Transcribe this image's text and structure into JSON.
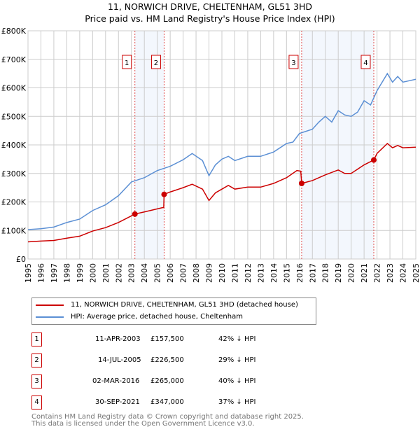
{
  "chart_data": {
    "type": "line",
    "title": "11, NORWICH DRIVE, CHELTENHAM, GL51 3HD",
    "subtitle": "Price paid vs. HM Land Registry's House Price Index (HPI)",
    "xlim": [
      1995,
      2025
    ],
    "ylim": [
      0,
      800000
    ],
    "y_ticks": [
      {
        "v": 0,
        "label": "£0"
      },
      {
        "v": 100000,
        "label": "£100K"
      },
      {
        "v": 200000,
        "label": "£200K"
      },
      {
        "v": 300000,
        "label": "£300K"
      },
      {
        "v": 400000,
        "label": "£400K"
      },
      {
        "v": 500000,
        "label": "£500K"
      },
      {
        "v": 600000,
        "label": "£600K"
      },
      {
        "v": 700000,
        "label": "£700K"
      },
      {
        "v": 800000,
        "label": "£800K"
      }
    ],
    "x_ticks": [
      "1995",
      "1996",
      "1997",
      "1998",
      "1999",
      "2000",
      "2001",
      "2002",
      "2003",
      "2004",
      "2005",
      "2006",
      "2007",
      "2008",
      "2009",
      "2010",
      "2011",
      "2012",
      "2013",
      "2014",
      "2015",
      "2016",
      "2017",
      "2018",
      "2019",
      "2020",
      "2021",
      "2022",
      "2023",
      "2024",
      "2025"
    ],
    "grid": true,
    "series": [
      {
        "name": "11, NORWICH DRIVE, CHELTENHAM, GL51 3HD (detached house)",
        "color": "#cc0000",
        "points": [
          [
            1995,
            60000
          ],
          [
            1996,
            63000
          ],
          [
            1997,
            65000
          ],
          [
            1998,
            73000
          ],
          [
            1999,
            80000
          ],
          [
            2000,
            98000
          ],
          [
            2001,
            110000
          ],
          [
            2002,
            128000
          ],
          [
            2003.27,
            157500
          ],
          [
            2004,
            165000
          ],
          [
            2005.4,
            180000
          ],
          [
            2005.5,
            180000
          ],
          [
            2005.53,
            226500
          ],
          [
            2006,
            235000
          ],
          [
            2007,
            250000
          ],
          [
            2007.7,
            262000
          ],
          [
            2008.5,
            245000
          ],
          [
            2009,
            205000
          ],
          [
            2009.5,
            232000
          ],
          [
            2010,
            245000
          ],
          [
            2010.5,
            258000
          ],
          [
            2011,
            245000
          ],
          [
            2012,
            252000
          ],
          [
            2013,
            252000
          ],
          [
            2014,
            265000
          ],
          [
            2015,
            285000
          ],
          [
            2015.8,
            310000
          ],
          [
            2016.1,
            308000
          ],
          [
            2016.17,
            265000
          ],
          [
            2017,
            275000
          ],
          [
            2018,
            295000
          ],
          [
            2019,
            312000
          ],
          [
            2019.5,
            300000
          ],
          [
            2020,
            300000
          ],
          [
            2021,
            330000
          ],
          [
            2021.75,
            347000
          ],
          [
            2022,
            370000
          ],
          [
            2022.8,
            405000
          ],
          [
            2023.2,
            390000
          ],
          [
            2023.6,
            398000
          ],
          [
            2024,
            390000
          ],
          [
            2025,
            392000
          ]
        ]
      },
      {
        "name": "HPI: Average price, detached house, Cheltenham",
        "color": "#5b8fd4",
        "points": [
          [
            1995,
            103000
          ],
          [
            1996,
            106000
          ],
          [
            1997,
            112000
          ],
          [
            1998,
            128000
          ],
          [
            1999,
            140000
          ],
          [
            2000,
            170000
          ],
          [
            2001,
            190000
          ],
          [
            2002,
            222000
          ],
          [
            2003,
            270000
          ],
          [
            2004,
            285000
          ],
          [
            2005,
            310000
          ],
          [
            2006,
            325000
          ],
          [
            2007,
            348000
          ],
          [
            2007.7,
            370000
          ],
          [
            2008.5,
            345000
          ],
          [
            2009,
            292000
          ],
          [
            2009.5,
            330000
          ],
          [
            2010,
            350000
          ],
          [
            2010.5,
            360000
          ],
          [
            2011,
            345000
          ],
          [
            2012,
            360000
          ],
          [
            2013,
            360000
          ],
          [
            2014,
            375000
          ],
          [
            2015,
            405000
          ],
          [
            2015.5,
            410000
          ],
          [
            2016,
            440000
          ],
          [
            2017,
            455000
          ],
          [
            2017.5,
            480000
          ],
          [
            2018,
            500000
          ],
          [
            2018.5,
            480000
          ],
          [
            2019,
            520000
          ],
          [
            2019.5,
            505000
          ],
          [
            2020,
            500000
          ],
          [
            2020.5,
            515000
          ],
          [
            2021,
            555000
          ],
          [
            2021.5,
            540000
          ],
          [
            2022,
            590000
          ],
          [
            2022.8,
            650000
          ],
          [
            2023.2,
            620000
          ],
          [
            2023.6,
            640000
          ],
          [
            2024,
            620000
          ],
          [
            2024.5,
            625000
          ],
          [
            2025,
            630000
          ]
        ]
      }
    ],
    "sales": [
      {
        "id": "1",
        "x": 2003.27,
        "date": "11-APR-2003",
        "price": 157500,
        "price_label": "£157,500",
        "hpi": "42% ↓ HPI"
      },
      {
        "id": "2",
        "x": 2005.53,
        "date": "14-JUL-2005",
        "price": 226500,
        "price_label": "£226,500",
        "hpi": "29% ↓ HPI"
      },
      {
        "id": "3",
        "x": 2016.17,
        "date": "02-MAR-2016",
        "price": 265000,
        "price_label": "£265,000",
        "hpi": "40% ↓ HPI"
      },
      {
        "id": "4",
        "x": 2021.75,
        "date": "30-SEP-2021",
        "price": 347000,
        "price_label": "£347,000",
        "hpi": "37% ↓ HPI"
      }
    ],
    "shaded_ranges": [
      [
        "1",
        "2"
      ],
      [
        "3",
        "4"
      ]
    ],
    "legend_position": "below"
  },
  "footer": {
    "line1": "Contains HM Land Registry data © Crown copyright and database right 2025.",
    "line2": "This data is licensed under the Open Government Licence v3.0."
  }
}
